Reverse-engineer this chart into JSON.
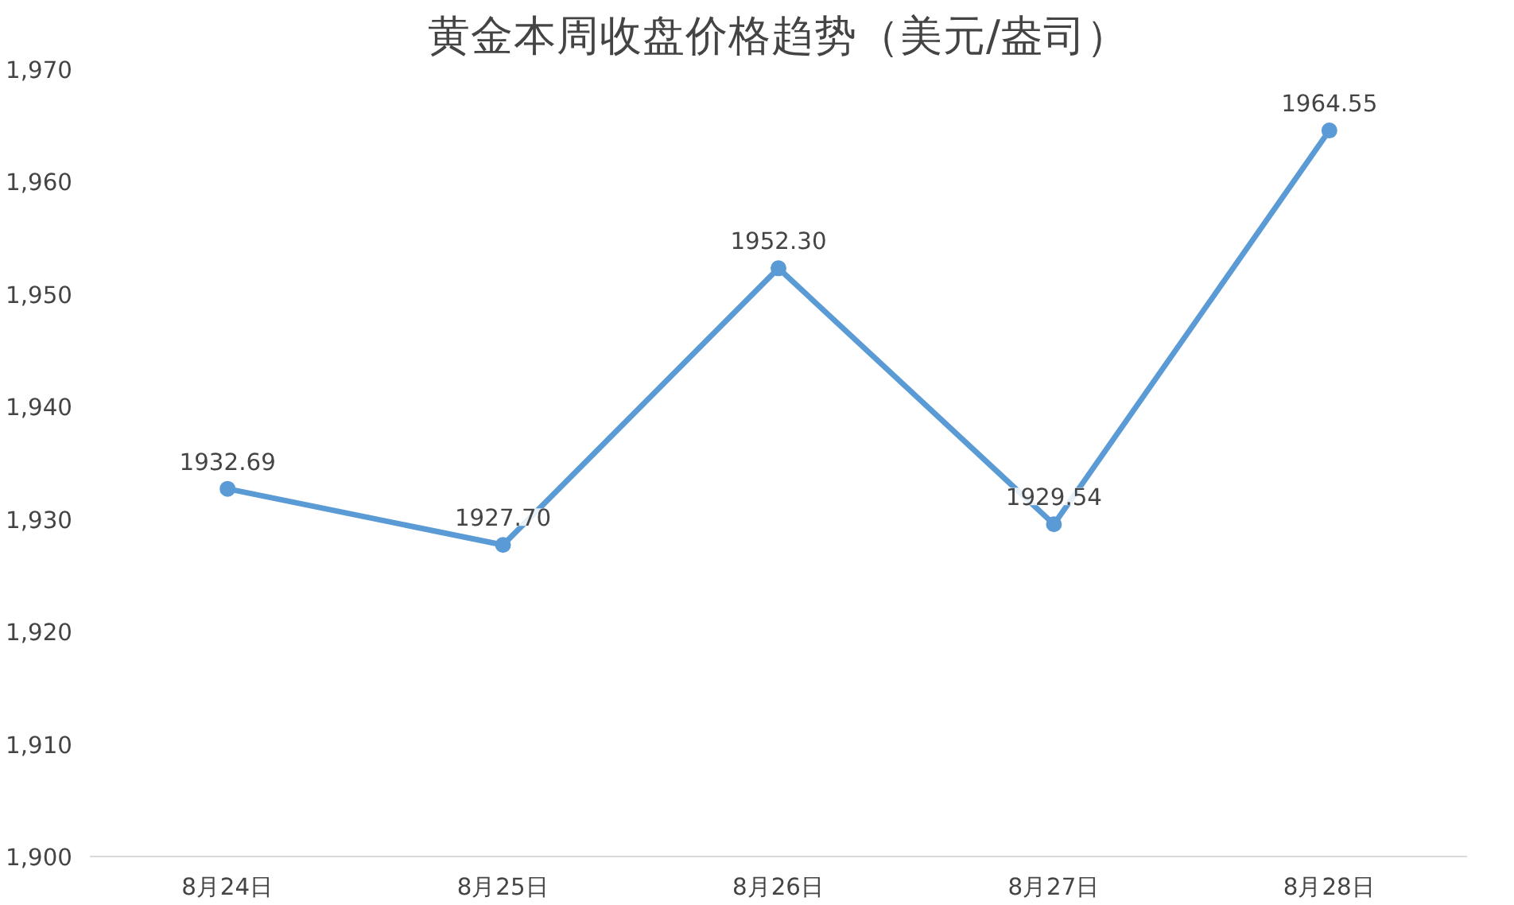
{
  "chart_data": {
    "type": "line",
    "title": "黄金本周收盘价格趋势（美元/盎司）",
    "categories": [
      "8月24日",
      "8月25日",
      "8月26日",
      "8月27日",
      "8月28日"
    ],
    "series": [
      {
        "color": "#5b9bd5",
        "values": [
          1932.69,
          1927.7,
          1952.3,
          1929.54,
          1964.55
        ]
      }
    ],
    "value_labels": [
      "1932.69",
      "1927.70",
      "1952.30",
      "1929.54",
      "1964.55"
    ],
    "ylim": [
      1900,
      1970
    ],
    "yticks": [
      {
        "value": 1900,
        "label": "1,900"
      },
      {
        "value": 1910,
        "label": "1,910"
      },
      {
        "value": 1920,
        "label": "1,920"
      },
      {
        "value": 1930,
        "label": "1,930"
      },
      {
        "value": 1940,
        "label": "1,940"
      },
      {
        "value": 1950,
        "label": "1,950"
      },
      {
        "value": 1960,
        "label": "1,960"
      },
      {
        "value": 1970,
        "label": "1,970"
      }
    ],
    "grid": false,
    "marker": "circle",
    "line_style": "solid"
  }
}
